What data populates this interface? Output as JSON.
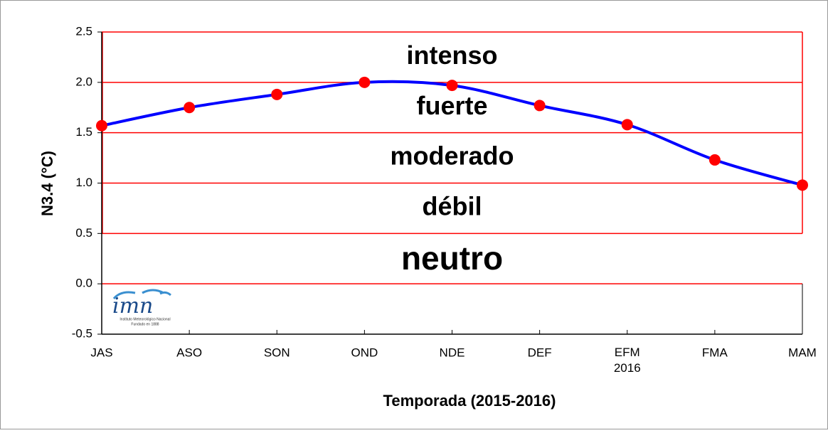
{
  "chart_data": {
    "type": "line",
    "categories": [
      "JAS",
      "ASO",
      "SON",
      "OND",
      "NDE",
      "DEF",
      "EFM\n2016",
      "FMA",
      "MAM"
    ],
    "series": [
      {
        "color": "#0000ff",
        "marker_color": "#ff0000",
        "values": [
          1.57,
          1.75,
          1.88,
          2.0,
          1.97,
          1.77,
          1.58,
          1.23,
          0.98
        ]
      }
    ],
    "ylim": [
      -0.5,
      2.5
    ],
    "yticks": [
      {
        "value": -0.5,
        "label": "-0.5"
      },
      {
        "value": 0,
        "label": "0.0"
      },
      {
        "value": 0.5,
        "label": "0.5"
      },
      {
        "value": 1,
        "label": "1.0"
      },
      {
        "value": 1.5,
        "label": "1.5"
      },
      {
        "value": 2,
        "label": "2.0"
      },
      {
        "value": 2.5,
        "label": "2.5"
      }
    ],
    "ylabel": "N3.4 (°C)",
    "xlabel": "Temporada (2015-2016)",
    "band_color": "#ff0000",
    "bands": [
      {
        "label": "intenso",
        "from": 2,
        "to": 2.5
      },
      {
        "label": "fuerte",
        "from": 1.5,
        "to": 2
      },
      {
        "label": "moderado",
        "from": 1,
        "to": 1.5
      },
      {
        "label": "débil",
        "from": 0.5,
        "to": 1
      },
      {
        "label": "neutro",
        "from": 0,
        "to": 0.5
      }
    ],
    "logo": {
      "name": "imn",
      "line1": "Instituto Meteorológico Nacional",
      "line2": "Fundado en 1888"
    }
  }
}
